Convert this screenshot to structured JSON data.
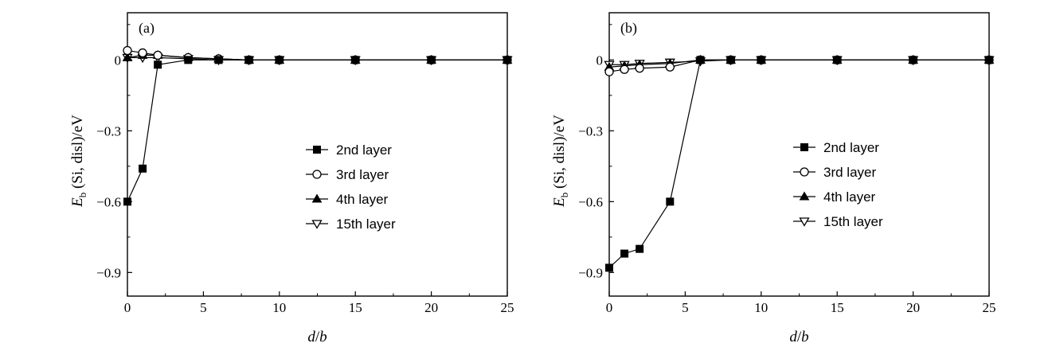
{
  "chart_data": [
    {
      "type": "line",
      "panel_label": "(a)",
      "xlabel_italic": "d",
      "xlabel_sep": "/",
      "xlabel_italic2": "b",
      "ylabel_E": "E",
      "ylabel_sub": "b",
      "ylabel_rest": " (Si, disl)/eV",
      "xlim": [
        0,
        25
      ],
      "ylim": [
        -1.0,
        0.2
      ],
      "xticks": [
        0,
        5,
        10,
        15,
        20,
        25
      ],
      "xtick_labels": [
        "0",
        "5",
        "10",
        "15",
        "20",
        "25"
      ],
      "yticks": [
        0,
        -0.3,
        -0.6,
        -0.9
      ],
      "ytick_labels": [
        "0",
        "−0.3",
        "−0.6",
        "−0.9"
      ],
      "legend_position": "center-right",
      "series": [
        {
          "name": "2nd layer",
          "marker": "square-filled",
          "x": [
            0,
            1,
            2,
            4,
            6,
            8,
            10,
            15,
            20,
            25
          ],
          "y": [
            -0.6,
            -0.46,
            -0.02,
            0.0,
            0.0,
            0.0,
            0.0,
            0.0,
            0.0,
            0.0
          ]
        },
        {
          "name": "3rd layer",
          "marker": "circle-open",
          "x": [
            0,
            1,
            2,
            4,
            6,
            8,
            10,
            15,
            20,
            25
          ],
          "y": [
            0.04,
            0.03,
            0.02,
            0.01,
            0.005,
            0.0,
            0.0,
            0.0,
            0.0,
            0.0
          ]
        },
        {
          "name": "4th layer",
          "marker": "triangle-up-filled",
          "x": [
            0,
            1,
            2,
            4,
            6,
            8,
            10,
            15,
            20,
            25
          ],
          "y": [
            0.01,
            0.02,
            0.02,
            0.01,
            0.005,
            0.0,
            0.0,
            0.0,
            0.0,
            0.0
          ]
        },
        {
          "name": "15th layer",
          "marker": "triangle-down-open",
          "x": [
            0,
            1,
            2,
            4,
            6,
            8,
            10,
            15,
            20,
            25
          ],
          "y": [
            0.01,
            0.01,
            0.01,
            0.005,
            0.0,
            0.0,
            0.0,
            0.0,
            0.0,
            0.0
          ]
        }
      ]
    },
    {
      "type": "line",
      "panel_label": "(b)",
      "xlabel_italic": "d",
      "xlabel_sep": "/",
      "xlabel_italic2": "b",
      "ylabel_E": "E",
      "ylabel_sub": "b",
      "ylabel_rest": " (Si, disl)/eV",
      "xlim": [
        0,
        25
      ],
      "ylim": [
        -1.0,
        0.2
      ],
      "xticks": [
        0,
        5,
        10,
        15,
        20,
        25
      ],
      "xtick_labels": [
        "0",
        "5",
        "10",
        "15",
        "20",
        "25"
      ],
      "yticks": [
        0,
        -0.3,
        -0.6,
        -0.9
      ],
      "ytick_labels": [
        "0",
        "−0.3",
        "−0.6",
        "−0.9"
      ],
      "legend_position": "center-right",
      "series": [
        {
          "name": "2nd layer",
          "marker": "square-filled",
          "x": [
            0,
            1,
            2,
            4,
            6,
            8,
            10,
            15,
            20,
            25
          ],
          "y": [
            -0.88,
            -0.82,
            -0.8,
            -0.6,
            0.0,
            0.0,
            0.0,
            0.0,
            0.0,
            0.0
          ]
        },
        {
          "name": "3rd layer",
          "marker": "circle-open",
          "x": [
            0,
            1,
            2,
            4,
            6,
            8,
            10,
            15,
            20,
            25
          ],
          "y": [
            -0.05,
            -0.04,
            -0.035,
            -0.03,
            0.0,
            0.0,
            0.0,
            0.0,
            0.0,
            0.0
          ]
        },
        {
          "name": "4th layer",
          "marker": "triangle-up-filled",
          "x": [
            0,
            1,
            2,
            4,
            6,
            8,
            10,
            15,
            20,
            25
          ],
          "y": [
            -0.03,
            -0.025,
            -0.02,
            -0.015,
            0.0,
            0.0,
            0.0,
            0.0,
            0.0,
            0.0
          ]
        },
        {
          "name": "15th layer",
          "marker": "triangle-down-open",
          "x": [
            0,
            1,
            2,
            4,
            6,
            8,
            10,
            15,
            20,
            25
          ],
          "y": [
            -0.02,
            -0.02,
            -0.015,
            -0.01,
            -0.005,
            0.0,
            0.0,
            0.0,
            0.0,
            0.0
          ]
        }
      ]
    }
  ]
}
